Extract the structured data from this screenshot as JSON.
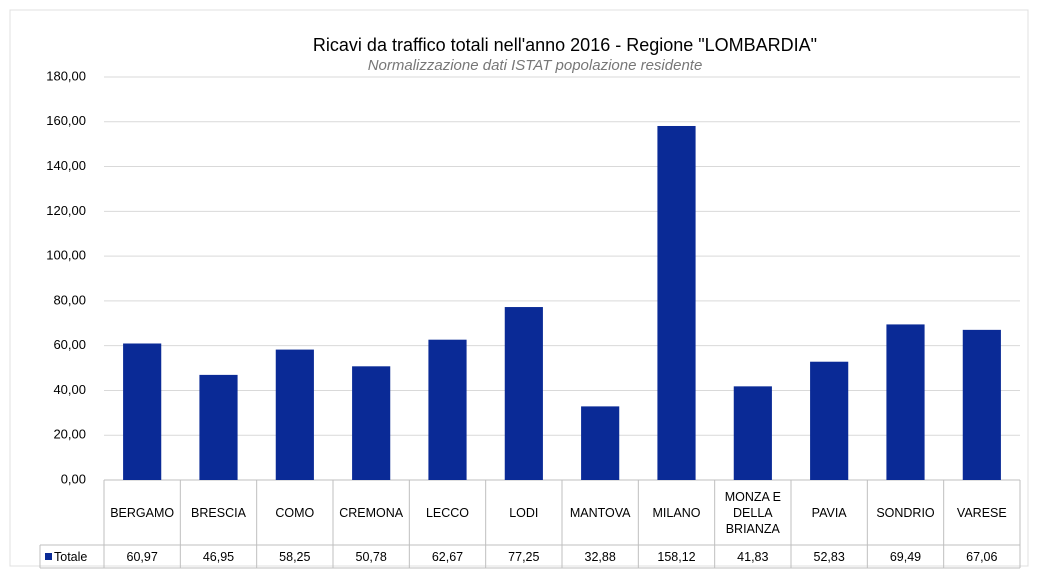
{
  "chart_data": {
    "type": "bar",
    "title": "Ricavi da traffico totali nell'anno 2016 - Regione \"LOMBARDIA\"",
    "subtitle": "Normalizzazione dati ISTAT popolazione residente",
    "categories": [
      "BERGAMO",
      "BRESCIA",
      "COMO",
      "CREMONA",
      "LECCO",
      "LODI",
      "MANTOVA",
      "MILANO",
      "MONZA E DELLA BRIANZA",
      "PAVIA",
      "SONDRIO",
      "VARESE"
    ],
    "series": [
      {
        "name": "Totale",
        "color": "#0a2a96",
        "values": [
          60.97,
          46.95,
          58.25,
          50.78,
          62.67,
          77.25,
          32.88,
          158.12,
          41.83,
          52.83,
          69.49,
          67.06
        ],
        "value_labels": [
          "60,97",
          "46,95",
          "58,25",
          "50,78",
          "62,67",
          "77,25",
          "32,88",
          "158,12",
          "41,83",
          "52,83",
          "69,49",
          "67,06"
        ]
      }
    ],
    "ylim": [
      0,
      180
    ],
    "yticks": [
      {
        "value": 0,
        "label": "0,00"
      },
      {
        "value": 20,
        "label": "20,00"
      },
      {
        "value": 40,
        "label": "40,00"
      },
      {
        "value": 60,
        "label": "60,00"
      },
      {
        "value": 80,
        "label": "80,00"
      },
      {
        "value": 100,
        "label": "100,00"
      },
      {
        "value": 120,
        "label": "120,00"
      },
      {
        "value": 140,
        "label": "140,00"
      },
      {
        "value": 160,
        "label": "160,00"
      },
      {
        "value": 180,
        "label": "180,00"
      }
    ],
    "grid": true
  }
}
